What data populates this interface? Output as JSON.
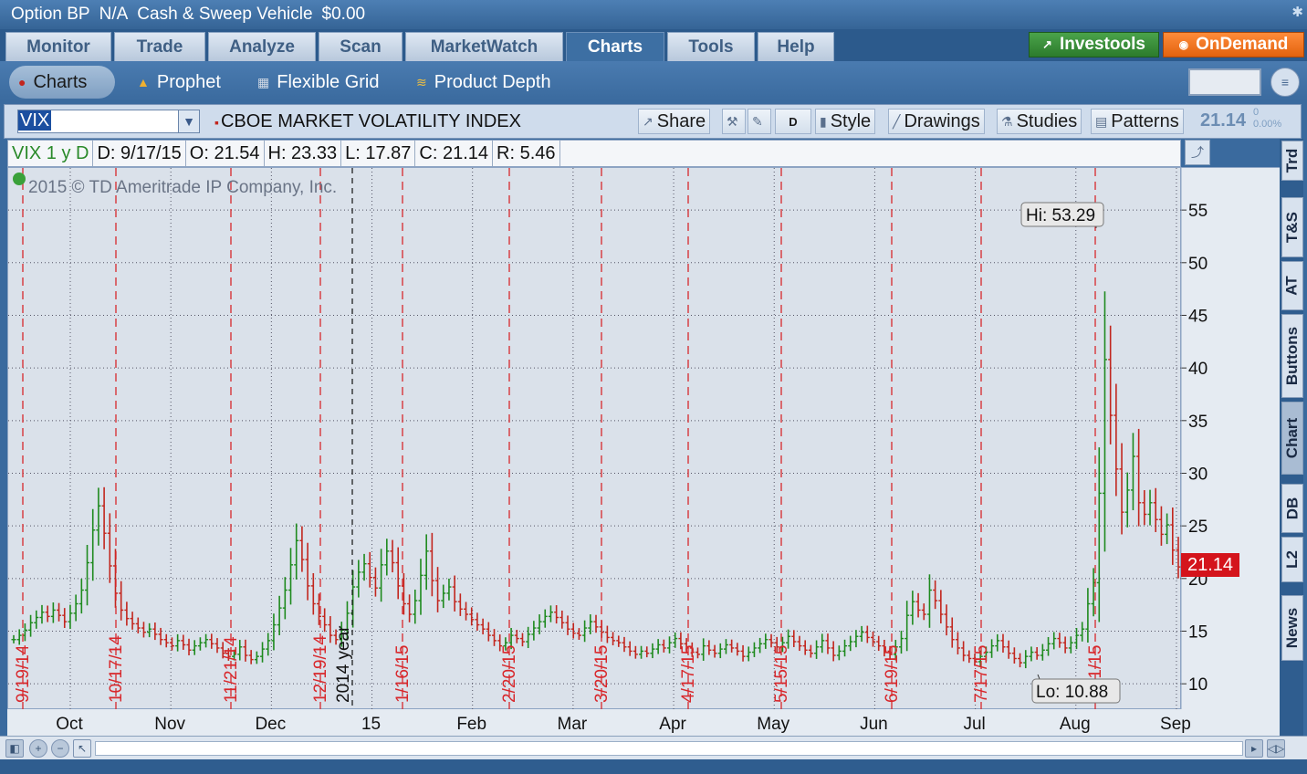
{
  "status_bar": {
    "option_bp_label": "Option BP",
    "option_bp_value": "N/A",
    "sweep_label": "Cash & Sweep Vehicle",
    "sweep_value": "$0.00"
  },
  "main_tabs": [
    "Monitor",
    "Trade",
    "Analyze",
    "Scan",
    "MarketWatch",
    "Charts",
    "Tools",
    "Help"
  ],
  "active_main_tab": "Charts",
  "header_buttons": {
    "investools": "Investools",
    "ondemand": "OnDemand"
  },
  "sub_tabs": [
    "Charts",
    "Prophet",
    "Flexible Grid",
    "Product Depth"
  ],
  "symbol_bar": {
    "symbol": "VIX",
    "description": "CBOE MARKET VOLATILITY INDEX",
    "share_label": "Share",
    "timeframe_button": "D",
    "style_label": "Style",
    "drawings_label": "Drawings",
    "studies_label": "Studies",
    "patterns_label": "Patterns",
    "last_price": "21.14",
    "net_change": "0",
    "pct_change": "0.00%"
  },
  "info_bar": {
    "symbol_period": "VIX 1 y D",
    "date": "D: 9/17/15",
    "open": "O: 21.54",
    "high": "H: 23.33",
    "low": "L: 17.87",
    "close": "C: 21.14",
    "range": "R: 5.46"
  },
  "side_tabs": [
    "Trd",
    "T&S",
    "AT",
    "Buttons",
    "Chart",
    "DB",
    "L2",
    "News"
  ],
  "colors": {
    "accent": "#3a6a9e",
    "up": "#2a8a2a",
    "down": "#c2261e",
    "price_badge": "#d4141c",
    "event_line": "#d8282c"
  },
  "chart_data": {
    "type": "ohlc",
    "watermark": "2015 © TD Ameritrade IP Company, Inc.",
    "x_month_labels": [
      "Oct",
      "Nov",
      "Dec",
      "15",
      "Feb",
      "Mar",
      "Apr",
      "May",
      "Jun",
      "Jul",
      "Aug",
      "Sep"
    ],
    "y_ticks": [
      10,
      15,
      20,
      25,
      30,
      35,
      40,
      45,
      50,
      55
    ],
    "ylim": [
      7.5,
      59
    ],
    "event_labels": [
      "9/19/14",
      "10/17/14",
      "11/21/14",
      "12/19/14",
      "1/16/15",
      "2/20/15",
      "3/20/15",
      "4/17/15",
      "5/15/15",
      "6/19/15",
      "7/17/15",
      "8/21/15"
    ],
    "year_label": "2014 year",
    "high_annotation": "Hi: 53.29",
    "low_annotation": "Lo: 10.88",
    "last_price_badge": "21.14",
    "approx_close_series": [
      14.2,
      14.6,
      15.1,
      15.8,
      16.3,
      16.8,
      16.4,
      17.0,
      16.5,
      15.9,
      16.7,
      17.6,
      18.9,
      21.5,
      24.6,
      26.9,
      24.3,
      21.2,
      18.6,
      17.0,
      16.2,
      15.7,
      15.3,
      14.9,
      15.2,
      14.7,
      14.2,
      13.9,
      13.6,
      14.1,
      13.7,
      13.2,
      13.6,
      13.9,
      14.2,
      13.8,
      13.4,
      12.9,
      12.6,
      12.8,
      13.5,
      12.7,
      12.3,
      12.6,
      13.3,
      14.1,
      15.6,
      17.2,
      18.9,
      21.3,
      23.6,
      21.8,
      19.3,
      17.6,
      16.4,
      15.6,
      14.6,
      14.2,
      15.1,
      16.7,
      19.2,
      20.6,
      21.4,
      20.1,
      19.1,
      21.3,
      22.6,
      21.5,
      19.3,
      17.6,
      16.6,
      17.9,
      20.3,
      22.6,
      19.8,
      17.9,
      18.6,
      19.2,
      17.8,
      17.1,
      16.6,
      16.1,
      15.6,
      15.2,
      14.6,
      14.1,
      13.6,
      13.9,
      14.6,
      14.3,
      14.0,
      14.7,
      15.3,
      15.9,
      16.4,
      16.8,
      16.3,
      15.8,
      15.2,
      14.8,
      14.6,
      15.3,
      15.9,
      15.4,
      14.9,
      14.4,
      14.1,
      13.9,
      13.5,
      13.1,
      12.8,
      13.1,
      12.9,
      13.3,
      13.7,
      13.4,
      13.9,
      14.3,
      13.8,
      13.4,
      13.0,
      12.8,
      13.6,
      13.2,
      12.9,
      13.3,
      13.7,
      13.4,
      13.1,
      12.6,
      13.0,
      13.4,
      13.8,
      14.2,
      13.9,
      13.5,
      13.9,
      14.5,
      14.0,
      13.6,
      13.2,
      12.9,
      13.5,
      14.1,
      13.4,
      12.7,
      13.1,
      13.6,
      14.0,
      14.5,
      14.9,
      14.4,
      14.0,
      13.6,
      13.1,
      12.8,
      13.5,
      14.3,
      16.5,
      17.8,
      17.0,
      16.6,
      18.9,
      17.9,
      16.6,
      15.4,
      14.2,
      13.4,
      12.7,
      12.4,
      12.1,
      12.6,
      13.0,
      13.6,
      14.1,
      13.5,
      12.9,
      12.4,
      12.0,
      12.6,
      13.0,
      12.7,
      13.2,
      13.8,
      14.3,
      13.9,
      13.4,
      13.9,
      14.6,
      15.2,
      17.6,
      19.6,
      28.1,
      40.8,
      35.5,
      30.4,
      26.3,
      28.4,
      31.6,
      27.2,
      26.1,
      27.2,
      25.6,
      24.2,
      25.1,
      22.7,
      21.1
    ]
  }
}
